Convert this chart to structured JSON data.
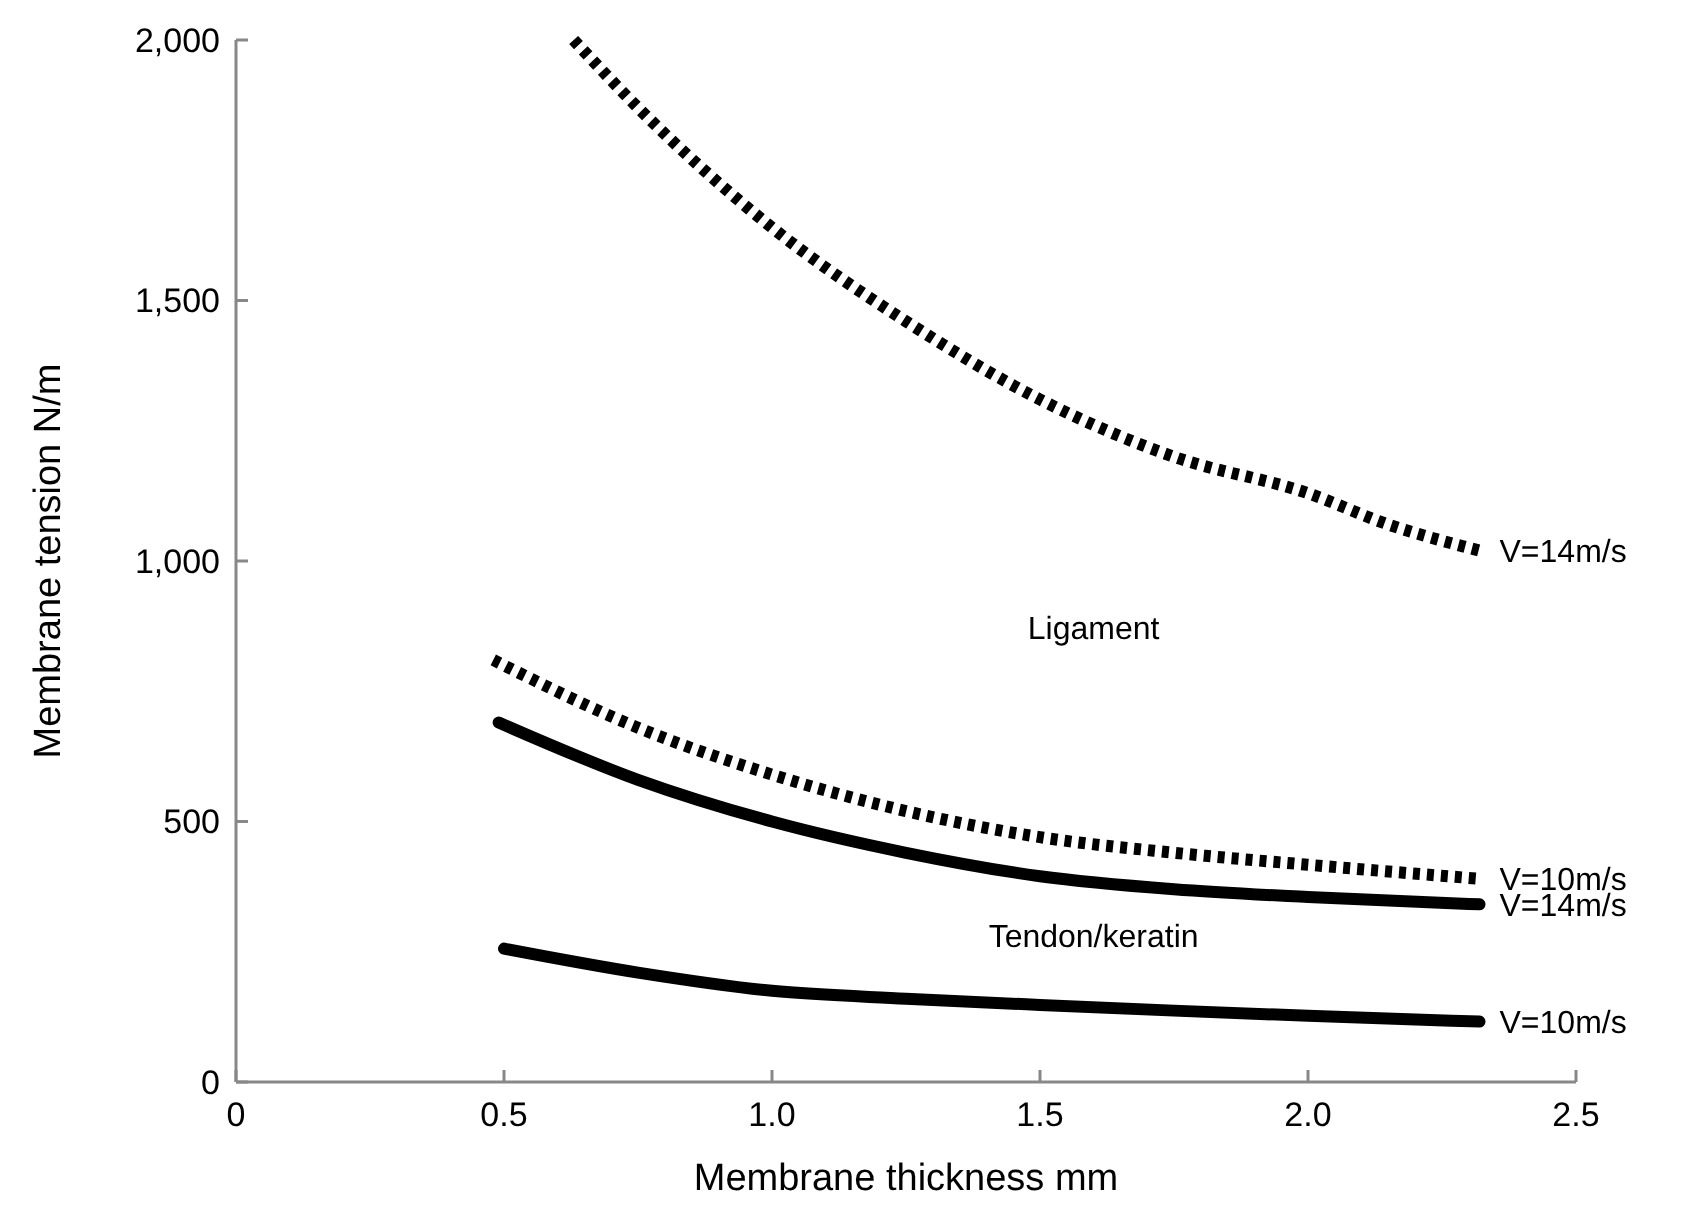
{
  "chart_data": {
    "type": "line",
    "xlabel": "Membrane thickness mm",
    "ylabel": "Membrane tension N/m",
    "xlim": [
      0,
      2.5
    ],
    "ylim": [
      0,
      2000
    ],
    "xticks": [
      {
        "value": 0,
        "label": "0"
      },
      {
        "value": 0.5,
        "label": "0.5"
      },
      {
        "value": 1,
        "label": "1.0"
      },
      {
        "value": 1.5,
        "label": "1.5"
      },
      {
        "value": 2,
        "label": "2.0"
      },
      {
        "value": 2.5,
        "label": "2.5"
      }
    ],
    "yticks": [
      {
        "value": 0,
        "label": "0"
      },
      {
        "value": 500,
        "label": "500"
      },
      {
        "value": 1000,
        "label": "1,000"
      },
      {
        "value": 1500,
        "label": "1,500"
      },
      {
        "value": 2000,
        "label": "2,000"
      }
    ],
    "grid": false,
    "annotations": [
      "Ligament",
      "Tendon/keratin"
    ],
    "series": [
      {
        "name": "V=14m/s",
        "color": "#000000",
        "line_style": "dotted",
        "x": [
          0.63,
          0.75,
          1.0,
          1.25,
          1.5,
          1.75,
          2.0,
          2.15,
          2.32
        ],
        "values": [
          2000,
          1870,
          1640,
          1460,
          1310,
          1200,
          1130,
          1070,
          1020
        ]
      },
      {
        "name": "V=10m/s",
        "color": "#000000",
        "line_style": "dotted",
        "x": [
          0.48,
          0.75,
          1.0,
          1.25,
          1.5,
          1.75,
          2.0,
          2.32
        ],
        "values": [
          810,
          680,
          590,
          520,
          470,
          440,
          417,
          390
        ]
      },
      {
        "name": "V=14m/s",
        "color": "#000000",
        "line_style": "solid",
        "x": [
          0.49,
          0.75,
          1.0,
          1.25,
          1.5,
          1.75,
          2.0,
          2.32
        ],
        "values": [
          690,
          580,
          500,
          440,
          395,
          370,
          355,
          341
        ]
      },
      {
        "name": "V=10m/s",
        "color": "#000000",
        "line_style": "solid",
        "x": [
          0.5,
          0.75,
          1.0,
          1.25,
          1.5,
          1.75,
          2.0,
          2.32
        ],
        "values": [
          256,
          210,
          175,
          160,
          148,
          137,
          127,
          116
        ]
      }
    ]
  }
}
